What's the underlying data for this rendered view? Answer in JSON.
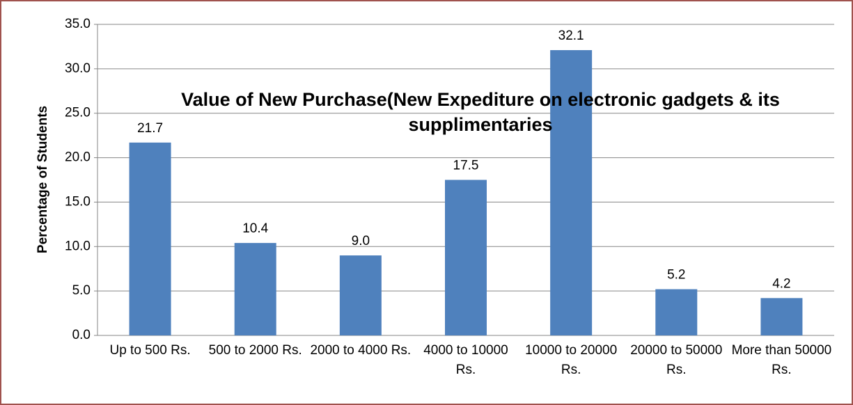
{
  "chart_data": {
    "type": "bar",
    "title": "Value of New Purchase(New Expediture on electronic gadgets & its supplimentaries",
    "ylabel": "Percentage of Students",
    "categories": [
      "Up to 500 Rs.",
      "500 to 2000 Rs.",
      "2000 to 4000 Rs.",
      "4000 to 10000 Rs.",
      "10000 to 20000 Rs.",
      "20000 to 50000 Rs.",
      "More than 50000 Rs."
    ],
    "values": [
      21.7,
      10.4,
      9.0,
      17.5,
      32.1,
      5.2,
      4.2
    ],
    "value_labels": [
      "21.7",
      "10.4",
      "9.0",
      "17.5",
      "32.1",
      "5.2",
      "4.2"
    ],
    "color": "#4f81bd",
    "ylim": [
      0,
      35
    ],
    "yticks": [
      {
        "value": 0,
        "label": "0.0"
      },
      {
        "value": 5,
        "label": "5.0"
      },
      {
        "value": 10,
        "label": "10.0"
      },
      {
        "value": 15,
        "label": "15.0"
      },
      {
        "value": 20,
        "label": "20.0"
      },
      {
        "value": 25,
        "label": "25.0"
      },
      {
        "value": 30,
        "label": "30.0"
      },
      {
        "value": 35,
        "label": "35.0"
      }
    ],
    "grid": true
  }
}
